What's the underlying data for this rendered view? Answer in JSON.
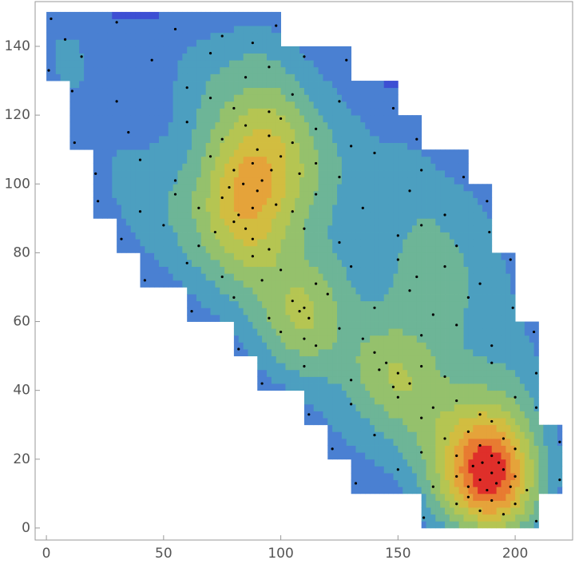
{
  "chart_data": {
    "type": "density-contour",
    "xlim": [
      -4.8,
      224.5
    ],
    "ylim": [
      -3.5,
      153
    ],
    "xticks": [
      0,
      50,
      100,
      150,
      200
    ],
    "yticks": [
      0,
      20,
      40,
      60,
      80,
      100,
      120,
      140
    ],
    "colors": [
      "#3d4fd3",
      "#4a80d2",
      "#4c9fc0",
      "#6db597",
      "#95c16c",
      "#b5c552",
      "#d2bd40",
      "#e5a33a",
      "#e87b31",
      "#df2f2a"
    ],
    "point_color": "#000000",
    "x": [
      2,
      8,
      30,
      55,
      75,
      98,
      88,
      1,
      15,
      45,
      70,
      95,
      110,
      128,
      85,
      11,
      30,
      60,
      80,
      95,
      105,
      125,
      148,
      70,
      12,
      35,
      60,
      75,
      85,
      95,
      100,
      105,
      115,
      130,
      158,
      90,
      21,
      40,
      55,
      70,
      80,
      88,
      92,
      100,
      108,
      115,
      125,
      140,
      160,
      178,
      96,
      84,
      22,
      40,
      55,
      65,
      75,
      82,
      90,
      98,
      105,
      115,
      135,
      155,
      170,
      188,
      88,
      78,
      32,
      50,
      65,
      72,
      80,
      88,
      95,
      110,
      125,
      150,
      160,
      175,
      189,
      85,
      42,
      60,
      75,
      88,
      100,
      115,
      130,
      150,
      158,
      170,
      185,
      198,
      92,
      62,
      80,
      95,
      105,
      108,
      112,
      120,
      140,
      155,
      165,
      180,
      199,
      110,
      82,
      100,
      110,
      115,
      125,
      140,
      160,
      175,
      190,
      208,
      135,
      92,
      110,
      130,
      145,
      150,
      155,
      148,
      160,
      170,
      190,
      209,
      142,
      112,
      130,
      150,
      160,
      165,
      175,
      185,
      190,
      200,
      209,
      122,
      140,
      160,
      170,
      180,
      185,
      190,
      195,
      200,
      219,
      175,
      132,
      150,
      165,
      175,
      182,
      185,
      188,
      190,
      192,
      195,
      198,
      200,
      186,
      205,
      219,
      180,
      193,
      161,
      175,
      185,
      190,
      195,
      200,
      209,
      180
    ],
    "y": [
      148,
      142,
      147,
      145,
      143,
      146,
      141,
      133,
      137,
      136,
      138,
      134,
      137,
      136,
      131,
      127,
      124,
      128,
      122,
      121,
      126,
      124,
      122,
      125,
      112,
      115,
      118,
      113,
      117,
      114,
      119,
      112,
      116,
      111,
      113,
      110,
      103,
      107,
      101,
      108,
      104,
      106,
      101,
      108,
      103,
      106,
      102,
      109,
      104,
      102,
      104,
      100,
      95,
      92,
      97,
      93,
      96,
      91,
      98,
      94,
      92,
      97,
      93,
      98,
      91,
      95,
      93,
      99,
      84,
      88,
      82,
      86,
      89,
      84,
      81,
      87,
      83,
      85,
      88,
      82,
      86,
      87,
      72,
      77,
      73,
      79,
      75,
      71,
      76,
      78,
      73,
      76,
      71,
      78,
      72,
      63,
      67,
      61,
      66,
      63,
      61,
      68,
      64,
      69,
      62,
      67,
      64,
      64,
      52,
      57,
      55,
      53,
      58,
      51,
      56,
      59,
      53,
      57,
      55,
      42,
      47,
      43,
      48,
      45,
      42,
      41,
      47,
      44,
      48,
      45,
      46,
      33,
      36,
      38,
      32,
      35,
      37,
      33,
      31,
      38,
      35,
      23,
      27,
      22,
      26,
      28,
      24,
      21,
      26,
      23,
      25,
      21,
      13,
      17,
      12,
      15,
      18,
      14,
      11,
      16,
      13,
      17,
      12,
      15,
      19,
      11,
      14,
      12,
      19,
      3,
      7,
      5,
      8,
      4,
      7,
      2,
      9
    ]
  }
}
